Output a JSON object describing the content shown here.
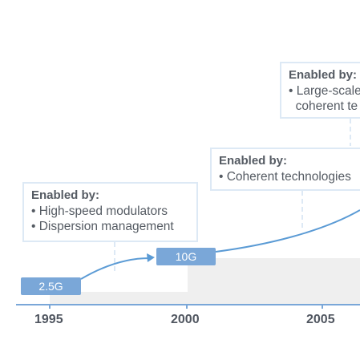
{
  "colors": {
    "accent": "#7aa7d8",
    "line": "#5b9bd5",
    "box_border": "#dde9f5",
    "axis": "#7aa7d8",
    "band": "#efefef"
  },
  "years": [
    "1995",
    "2000",
    "2005"
  ],
  "milestones": [
    {
      "label": "2.5G"
    },
    {
      "label": "10G"
    }
  ],
  "enablers": [
    {
      "title": "Enabled by:",
      "items": [
        "High-speed modulators",
        "Dispersion management"
      ]
    },
    {
      "title": "Enabled by:",
      "items": [
        "Coherent technologies"
      ]
    },
    {
      "title": "Enabled by:",
      "items": [
        "Large-scale",
        "coherent te"
      ]
    }
  ]
}
